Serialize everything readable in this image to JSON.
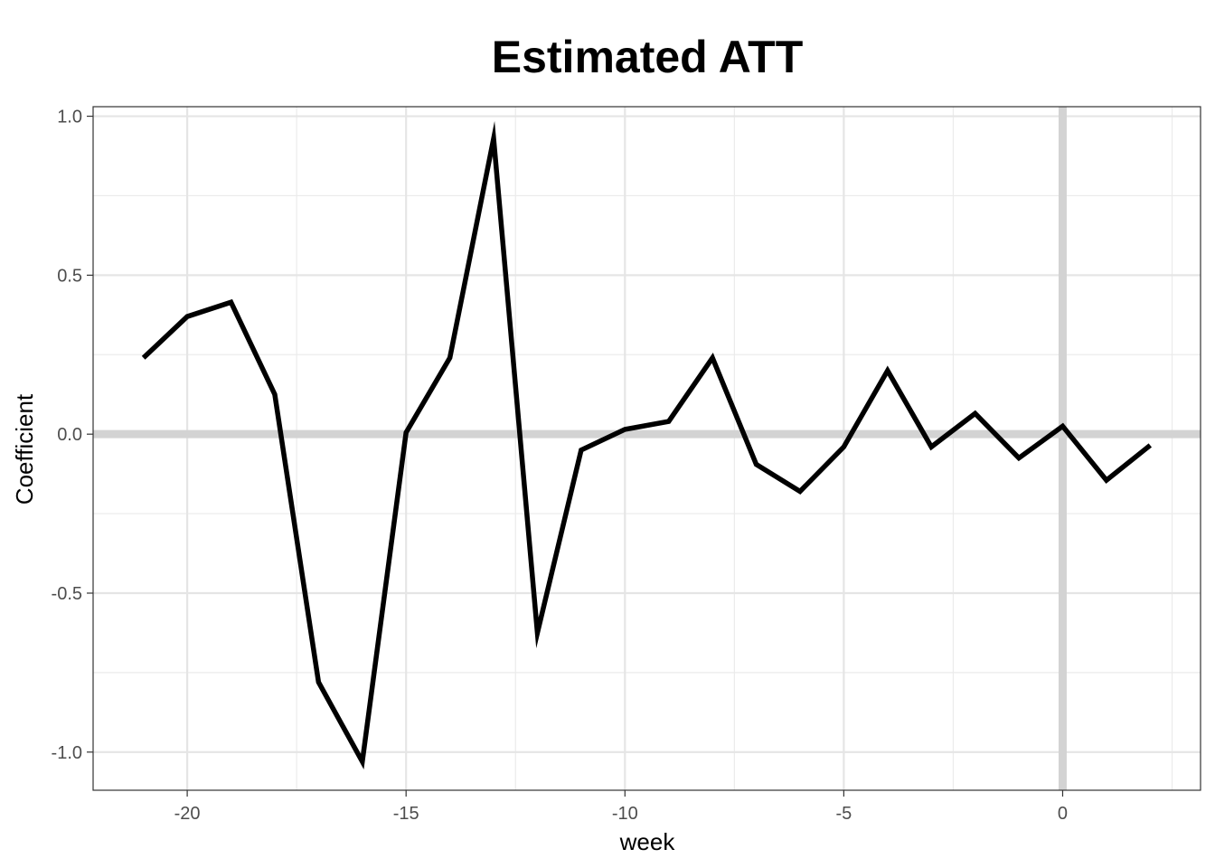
{
  "chart_data": {
    "type": "line",
    "title": "Estimated ATT",
    "xlabel": "week",
    "ylabel": "Coefficient",
    "xlim": [
      -22.15,
      3.15
    ],
    "ylim": [
      -1.12,
      1.03
    ],
    "x_ticks": [
      -20,
      -15,
      -10,
      -5,
      0
    ],
    "x_tick_labels": [
      "-20",
      "-15",
      "-10",
      "-5",
      "0"
    ],
    "y_ticks": [
      -1.0,
      -0.5,
      0.0,
      0.5,
      1.0
    ],
    "y_tick_labels": [
      "-1.0",
      "-0.5",
      "0.0",
      "0.5",
      "1.0"
    ],
    "grid": true,
    "reference_lines": {
      "y": 0,
      "x": 0,
      "color": "#d3d3d3"
    },
    "line_color": "#000000",
    "series": [
      {
        "x": [
          -21,
          -20,
          -19,
          -18,
          -17,
          -16,
          -15,
          -14,
          -13,
          -12,
          -11,
          -10,
          -9,
          -8,
          -7,
          -6,
          -5,
          -4,
          -3,
          -2,
          -1,
          0,
          1,
          2
        ],
        "values": [
          0.24,
          0.37,
          0.415,
          0.125,
          -0.78,
          -1.03,
          0.005,
          0.24,
          0.93,
          -0.625,
          -0.05,
          0.015,
          0.04,
          0.24,
          -0.095,
          -0.18,
          -0.04,
          0.2,
          -0.04,
          0.065,
          -0.075,
          0.025,
          -0.145,
          -0.035
        ]
      }
    ]
  }
}
